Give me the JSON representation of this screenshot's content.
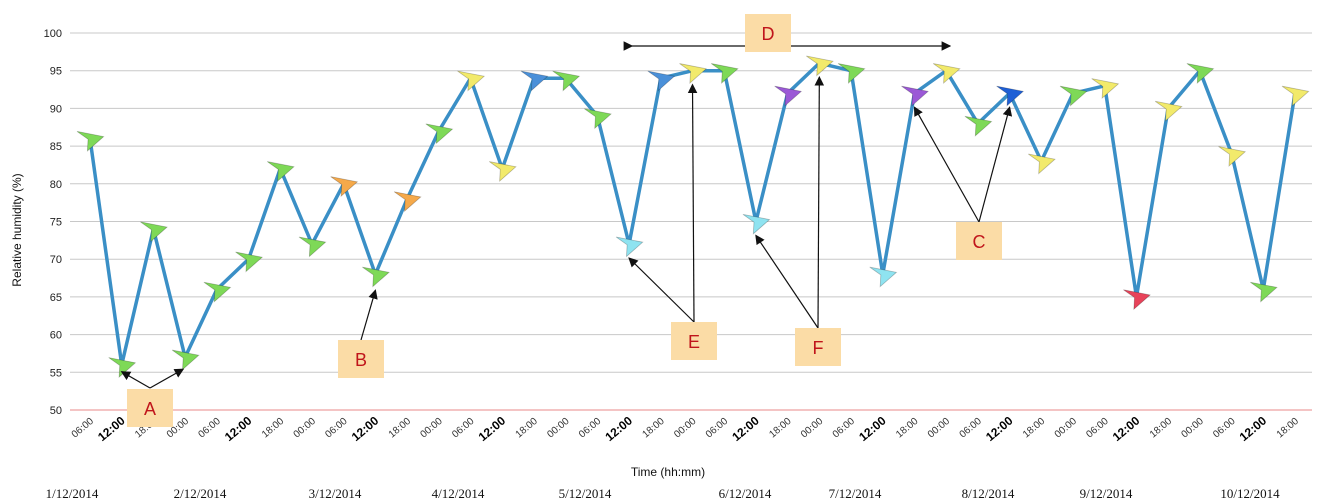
{
  "chart_data": {
    "type": "line",
    "ylabel": "Relative humidity (%)",
    "xlabel": "Time (hh:mm)",
    "ylim": [
      50,
      100
    ],
    "yticks": [
      "50",
      "55",
      "60",
      "65",
      "70",
      "75",
      "80",
      "85",
      "90",
      "95",
      "100"
    ],
    "grid": true,
    "line_color": "#3a8fc6",
    "categories": [
      "06:00",
      "12:00",
      "18:00",
      "00:00",
      "06:00",
      "12:00",
      "18:00",
      "00:00",
      "06:00",
      "12:00",
      "18:00",
      "00:00",
      "06:00",
      "12:00",
      "18:00",
      "00:00",
      "06:00",
      "12:00",
      "18:00",
      "00:00",
      "06:00",
      "12:00",
      "18:00",
      "00:00",
      "06:00",
      "12:00",
      "18:00",
      "00:00",
      "06:00",
      "12:00",
      "18:00",
      "00:00",
      "06:00",
      "12:00",
      "18:00",
      "00:00",
      "06:00",
      "12:00",
      "18:00"
    ],
    "dates": [
      "1/12/2014",
      "2/12/2014",
      "3/12/2014",
      "4/12/2014",
      "5/12/2014",
      "6/12/2014",
      "7/12/2014",
      "8/12/2014",
      "9/12/2014",
      "10/12/2014"
    ],
    "x": [
      0,
      0.5,
      1,
      1.5,
      2,
      2.5,
      3,
      3.5,
      4,
      4.5,
      5,
      5.5,
      6,
      6.5,
      7,
      7.5,
      8,
      8.5,
      9,
      9.5,
      10,
      10.5,
      11,
      11.5,
      12,
      12.5,
      13,
      13.5,
      14,
      14.5,
      15,
      15.5,
      16,
      16.5,
      17,
      17.5,
      18,
      18.5,
      19,
      19.5,
      20,
      20.5,
      21,
      21.5,
      22,
      22.5,
      23,
      23.5,
      24,
      24.5,
      25,
      25.5,
      26,
      26.5,
      27,
      27.5,
      28,
      28.5,
      29,
      29.5,
      30,
      30.5,
      31,
      31.5,
      32,
      32.5,
      33,
      33.5,
      34,
      34.5,
      35,
      35.5,
      36,
      36.5,
      37,
      37.5,
      38
    ],
    "values": [
      86,
      56,
      74,
      57,
      66,
      70,
      82,
      72,
      80,
      68,
      78,
      87,
      94,
      82,
      94,
      94,
      89,
      72,
      94,
      95,
      95,
      75,
      92,
      96,
      95,
      68,
      92,
      95,
      88,
      92,
      83,
      92,
      93,
      65,
      90,
      95,
      84,
      66,
      92
    ],
    "marker_colors": [
      "#7ed957",
      "#7ed957",
      "#7ed957",
      "#7ed957",
      "#7ed957",
      "#7ed957",
      "#7ed957",
      "#7ed957",
      "#f5a94a",
      "#7ed957",
      "#f5a94a",
      "#7ed957",
      "#f2ea6b",
      "#f2ea6b",
      "#4a90d9",
      "#7ed957",
      "#7ed957",
      "#8fe3f0",
      "#4a90d9",
      "#f2ea6b",
      "#7ed957",
      "#8fe3f0",
      "#9b59d6",
      "#f2ea6b",
      "#7ed957",
      "#8fe3f0",
      "#9b59d6",
      "#f2ea6b",
      "#7ed957",
      "#1e5fd6",
      "#f2ea6b",
      "#7ed957",
      "#f2ea6b",
      "#e8435a",
      "#f2ea6b",
      "#7ed957",
      "#f2ea6b",
      "#7ed957",
      "#f2ea6b"
    ],
    "annotations": [
      {
        "label": "A",
        "targets": [
          1,
          3
        ]
      },
      {
        "label": "B",
        "targets": [
          9
        ]
      },
      {
        "label": "C",
        "targets": [
          26,
          29
        ]
      },
      {
        "label": "D",
        "span": [
          17,
          29
        ]
      },
      {
        "label": "E",
        "targets": [
          17,
          19
        ]
      },
      {
        "label": "F",
        "targets": [
          21,
          23
        ]
      }
    ]
  }
}
